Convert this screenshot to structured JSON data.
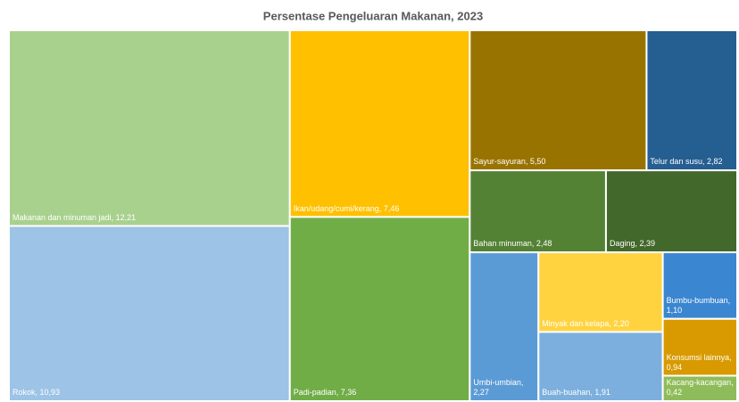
{
  "chart_data": {
    "type": "treemap",
    "title": "Persentase Pengeluaran Makanan, 2023",
    "categories": [
      "Makanan dan minuman jadi, 12,21",
      "Rokok, 10,93",
      "Ikan/udang/cumi/kerang, 7,46",
      "Padi-padian, 7,36",
      "Sayur-sayuran, 5,50",
      "Telur dan susu, 2,82",
      "Bahan minuman, 2,48",
      "Daging, 2,39",
      "Umbi-umbian, 2,27",
      "Minyak dan kelapa, 2,20",
      "Buah-buahan, 1,91",
      "Bumbu-bumbuan, 1,10",
      "Konsumsi lainnya, 0,94",
      "Kacang-kacangan, 0,42"
    ],
    "values": [
      12.21,
      10.93,
      7.46,
      7.36,
      5.5,
      2.82,
      2.48,
      2.39,
      2.27,
      2.2,
      1.91,
      1.1,
      0.94,
      0.42
    ],
    "colors": [
      "#a9d18e",
      "#9dc3e6",
      "#ffc000",
      "#70ad47",
      "#997300",
      "#255e91",
      "#548235",
      "#43682b",
      "#5b9bd5",
      "#ffd33f",
      "#7cafdd",
      "#3a86d0",
      "#d89a00",
      "#8fbc5a"
    ]
  }
}
